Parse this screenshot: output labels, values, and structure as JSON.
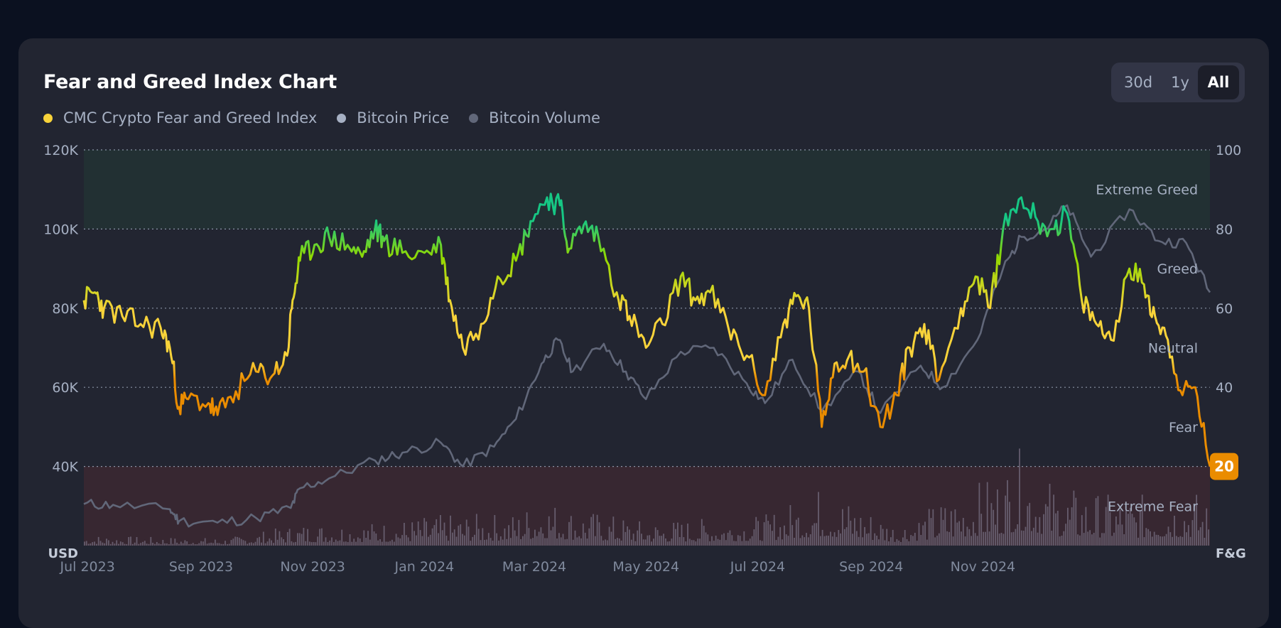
{
  "title": "Fear and Greed Index Chart",
  "range_buttons": [
    {
      "label": "30d",
      "active": false
    },
    {
      "label": "1y",
      "active": false
    },
    {
      "label": "All",
      "active": true
    }
  ],
  "legend": [
    {
      "label": "CMC Crypto Fear and Greed Index",
      "color": "#f8d33a"
    },
    {
      "label": "Bitcoin Price",
      "color": "#a6b0c3"
    },
    {
      "label": "Bitcoin Volume",
      "color": "#616779"
    }
  ],
  "current_value": "20",
  "chart_data": {
    "type": "line",
    "left_axis": {
      "unit": "USD",
      "range": [
        20000,
        120000
      ],
      "ticks": [
        "120K",
        "100K",
        "80K",
        "60K",
        "40K"
      ],
      "tick_values": [
        120000,
        100000,
        80000,
        60000,
        40000
      ]
    },
    "right_axis": {
      "unit": "F&G",
      "range": [
        0,
        100
      ],
      "ticks": [
        "100",
        "80",
        "60",
        "40",
        "20"
      ],
      "tick_values": [
        100,
        80,
        60,
        40,
        20
      ]
    },
    "x_ticks": [
      {
        "label": "Jul 2023",
        "date": "2023-07-01"
      },
      {
        "label": "Sep 2023",
        "date": "2023-09-01"
      },
      {
        "label": "Nov 2023",
        "date": "2023-11-01"
      },
      {
        "label": "Jan 2024",
        "date": "2024-01-01"
      },
      {
        "label": "Mar 2024",
        "date": "2024-03-01"
      },
      {
        "label": "May 2024",
        "date": "2024-05-01"
      },
      {
        "label": "Jul 2024",
        "date": "2024-07-01"
      },
      {
        "label": "Sep 2024",
        "date": "2024-09-01"
      },
      {
        "label": "Nov 2024",
        "date": "2024-11-01"
      }
    ],
    "x_range": [
      "2023-06-29",
      "2025-03-05"
    ],
    "zones": [
      {
        "label": "Extreme Greed",
        "value": 90
      },
      {
        "label": "Greed",
        "value": 70
      },
      {
        "label": "Neutral",
        "value": 50
      },
      {
        "label": "Fear",
        "value": 30
      },
      {
        "label": "Extreme Fear",
        "value": 10
      }
    ],
    "zone_bands": [
      {
        "from": 80,
        "to": 100,
        "color": "#223033"
      },
      {
        "from": 0,
        "to": 20,
        "color": "#372731"
      }
    ],
    "series": [
      {
        "name": "CMC Crypto Fear and Greed Index",
        "axis": "right",
        "points": [
          [
            "2023-06-29",
            62
          ],
          [
            "2023-07-05",
            64
          ],
          [
            "2023-07-10",
            60
          ],
          [
            "2023-07-20",
            58
          ],
          [
            "2023-07-30",
            56
          ],
          [
            "2023-08-10",
            55
          ],
          [
            "2023-08-15",
            50
          ],
          [
            "2023-08-20",
            35
          ],
          [
            "2023-08-25",
            37
          ],
          [
            "2023-09-05",
            36
          ],
          [
            "2023-09-10",
            33
          ],
          [
            "2023-09-20",
            39
          ],
          [
            "2023-10-01",
            44
          ],
          [
            "2023-10-10",
            43
          ],
          [
            "2023-10-18",
            48
          ],
          [
            "2023-10-21",
            62
          ],
          [
            "2023-10-25",
            72
          ],
          [
            "2023-11-02",
            76
          ],
          [
            "2023-11-10",
            78
          ],
          [
            "2023-11-20",
            76
          ],
          [
            "2023-11-28",
            73
          ],
          [
            "2023-12-05",
            80
          ],
          [
            "2023-12-10",
            77
          ],
          [
            "2023-12-20",
            74
          ],
          [
            "2024-01-01",
            74
          ],
          [
            "2024-01-10",
            76
          ],
          [
            "2024-01-15",
            62
          ],
          [
            "2024-01-22",
            50
          ],
          [
            "2024-02-01",
            56
          ],
          [
            "2024-02-10",
            68
          ],
          [
            "2024-02-20",
            72
          ],
          [
            "2024-02-28",
            82
          ],
          [
            "2024-03-08",
            88
          ],
          [
            "2024-03-15",
            86
          ],
          [
            "2024-03-20",
            75
          ],
          [
            "2024-03-28",
            81
          ],
          [
            "2024-04-05",
            78
          ],
          [
            "2024-04-15",
            64
          ],
          [
            "2024-04-22",
            58
          ],
          [
            "2024-05-01",
            50
          ],
          [
            "2024-05-10",
            56
          ],
          [
            "2024-05-20",
            68
          ],
          [
            "2024-05-28",
            62
          ],
          [
            "2024-06-05",
            64
          ],
          [
            "2024-06-15",
            55
          ],
          [
            "2024-06-25",
            48
          ],
          [
            "2024-07-05",
            38
          ],
          [
            "2024-07-15",
            56
          ],
          [
            "2024-07-22",
            63
          ],
          [
            "2024-07-29",
            60
          ],
          [
            "2024-08-05",
            30
          ],
          [
            "2024-08-12",
            46
          ],
          [
            "2024-08-20",
            48
          ],
          [
            "2024-08-28",
            44
          ],
          [
            "2024-09-06",
            30
          ],
          [
            "2024-09-15",
            38
          ],
          [
            "2024-09-22",
            50
          ],
          [
            "2024-09-30",
            56
          ],
          [
            "2024-10-08",
            42
          ],
          [
            "2024-10-20",
            60
          ],
          [
            "2024-10-28",
            68
          ],
          [
            "2024-11-05",
            60
          ],
          [
            "2024-11-12",
            80
          ],
          [
            "2024-11-22",
            88
          ],
          [
            "2024-12-01",
            82
          ],
          [
            "2024-12-10",
            80
          ],
          [
            "2024-12-17",
            84
          ],
          [
            "2024-12-25",
            62
          ],
          [
            "2025-01-02",
            56
          ],
          [
            "2025-01-10",
            52
          ],
          [
            "2025-01-20",
            70
          ],
          [
            "2025-01-28",
            66
          ],
          [
            "2025-02-03",
            58
          ],
          [
            "2025-02-10",
            52
          ],
          [
            "2025-02-18",
            38
          ],
          [
            "2025-02-25",
            40
          ],
          [
            "2025-03-05",
            20
          ]
        ]
      },
      {
        "name": "Bitcoin Price",
        "axis": "left",
        "points": [
          [
            "2023-06-29",
            30500
          ],
          [
            "2023-07-15",
            30300
          ],
          [
            "2023-08-15",
            29200
          ],
          [
            "2023-08-20",
            26200
          ],
          [
            "2023-09-10",
            25800
          ],
          [
            "2023-10-01",
            27000
          ],
          [
            "2023-10-20",
            29500
          ],
          [
            "2023-10-25",
            34500
          ],
          [
            "2023-11-10",
            37000
          ],
          [
            "2023-12-05",
            41500
          ],
          [
            "2023-12-20",
            43500
          ],
          [
            "2024-01-10",
            46000
          ],
          [
            "2024-01-22",
            40000
          ],
          [
            "2024-02-08",
            45000
          ],
          [
            "2024-02-20",
            52000
          ],
          [
            "2024-03-05",
            66000
          ],
          [
            "2024-03-14",
            72000
          ],
          [
            "2024-03-22",
            64000
          ],
          [
            "2024-04-08",
            71000
          ],
          [
            "2024-04-20",
            64000
          ],
          [
            "2024-05-01",
            57000
          ],
          [
            "2024-05-20",
            69000
          ],
          [
            "2024-06-07",
            70000
          ],
          [
            "2024-06-25",
            61000
          ],
          [
            "2024-07-05",
            56000
          ],
          [
            "2024-07-20",
            67000
          ],
          [
            "2024-08-05",
            54000
          ],
          [
            "2024-08-25",
            64000
          ],
          [
            "2024-09-06",
            53500
          ],
          [
            "2024-09-28",
            65500
          ],
          [
            "2024-10-10",
            60000
          ],
          [
            "2024-10-29",
            72000
          ],
          [
            "2024-11-12",
            90000
          ],
          [
            "2024-11-22",
            98000
          ],
          [
            "2024-12-05",
            100000
          ],
          [
            "2024-12-17",
            106000
          ],
          [
            "2024-12-30",
            93000
          ],
          [
            "2025-01-20",
            105000
          ],
          [
            "2025-02-05",
            97000
          ],
          [
            "2025-02-20",
            96500
          ],
          [
            "2025-03-05",
            84000
          ]
        ]
      },
      {
        "name": "Bitcoin Volume",
        "axis": "none",
        "note": "relative daily volume, 0-1",
        "points": [
          [
            "2023-06-29",
            0.1
          ],
          [
            "2023-08-01",
            0.08
          ],
          [
            "2023-09-15",
            0.07
          ],
          [
            "2023-10-25",
            0.2
          ],
          [
            "2023-12-10",
            0.22
          ],
          [
            "2024-01-10",
            0.28
          ],
          [
            "2024-02-20",
            0.3
          ],
          [
            "2024-03-05",
            0.45
          ],
          [
            "2024-03-20",
            0.35
          ],
          [
            "2024-05-01",
            0.22
          ],
          [
            "2024-07-05",
            0.28
          ],
          [
            "2024-08-05",
            0.55
          ],
          [
            "2024-09-15",
            0.2
          ],
          [
            "2024-11-12",
            0.7
          ],
          [
            "2024-11-22",
            0.9
          ],
          [
            "2024-12-10",
            0.55
          ],
          [
            "2025-01-15",
            0.45
          ],
          [
            "2025-02-25",
            0.5
          ],
          [
            "2025-03-05",
            0.35
          ]
        ]
      }
    ]
  }
}
